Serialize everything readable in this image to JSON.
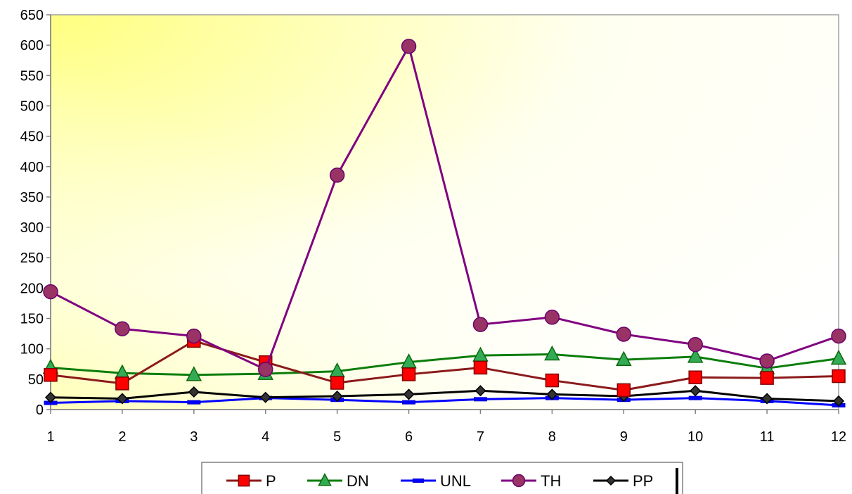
{
  "chart_data": {
    "type": "line",
    "title": "",
    "xlabel": "",
    "ylabel": "",
    "categories": [
      "1",
      "2",
      "3",
      "4",
      "5",
      "6",
      "7",
      "8",
      "9",
      "10",
      "11",
      "12"
    ],
    "ylim": [
      0,
      650
    ],
    "yticks": [
      "0",
      "50",
      "100",
      "150",
      "200",
      "250",
      "300",
      "350",
      "400",
      "450",
      "500",
      "550",
      "600",
      "650"
    ],
    "grid": false,
    "legend_position": "bottom",
    "series": [
      {
        "name": "P",
        "color": "#8b1a1a",
        "marker": "square",
        "marker_fill": "#ff0000",
        "values": [
          57,
          43,
          113,
          78,
          44,
          58,
          69,
          48,
          32,
          53,
          52,
          55
        ]
      },
      {
        "name": "DN",
        "color": "#0a7d0a",
        "marker": "triangle",
        "marker_fill": "#33aa55",
        "values": [
          69,
          60,
          57,
          59,
          63,
          78,
          89,
          91,
          82,
          87,
          68,
          84
        ]
      },
      {
        "name": "UNL",
        "color": "#0000ff",
        "marker": "dash",
        "marker_fill": "#0000ff",
        "values": [
          11,
          14,
          12,
          19,
          16,
          12,
          17,
          19,
          16,
          19,
          14,
          7
        ]
      },
      {
        "name": "TH",
        "color": "#800080",
        "marker": "circle",
        "marker_fill": "#993366",
        "values": [
          194,
          133,
          121,
          66,
          386,
          598,
          140,
          152,
          124,
          107,
          80,
          121
        ]
      },
      {
        "name": "PP",
        "color": "#000000",
        "marker": "diamond",
        "marker_fill": "#333333",
        "values": [
          20,
          18,
          29,
          20,
          22,
          25,
          31,
          25,
          22,
          31,
          18,
          14
        ]
      }
    ]
  }
}
